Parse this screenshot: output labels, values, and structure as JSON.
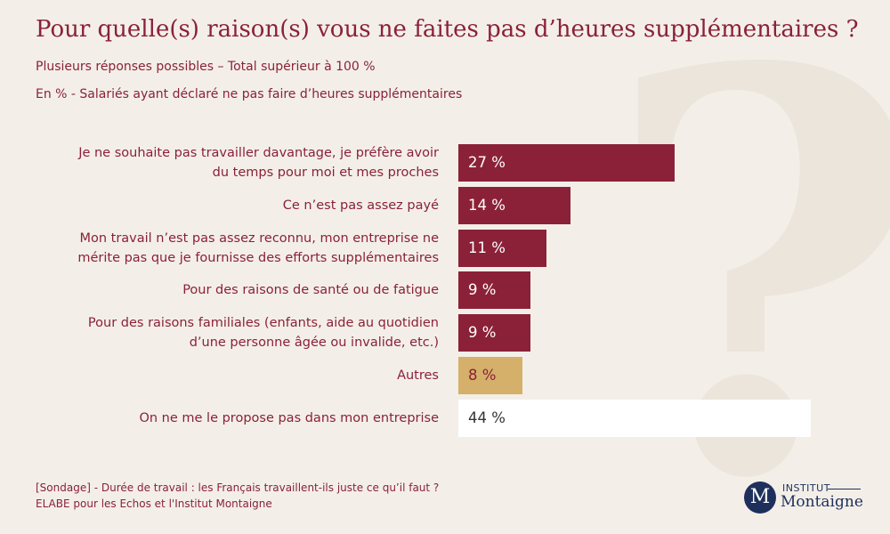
{
  "chart_data": {
    "type": "hbar",
    "title": "Pour quelle(s) raison(s) vous ne faites pas d’heures supplémentaires ?",
    "subtitle": "Plusieurs réponses possibles – Total supérieur à 100 %",
    "note": "En % - Salariés ayant déclaré ne pas faire d’heures supplémentaires",
    "categories": [
      "Je ne souhaite pas travailler davantage, je préfère avoir\ndu temps pour moi et mes proches",
      "Ce n’est pas assez payé",
      "Mon travail n’est pas assez reconnu, mon entreprise ne\nmérite pas que je fournisse des efforts supplémentaires",
      "Pour des raisons de santé ou de fatigue",
      "Pour des raisons familiales (enfants, aide au quotidien\nd’une personne âgée ou invalide, etc.)",
      "Autres",
      "On ne me le propose pas dans mon entreprise"
    ],
    "values": [
      27,
      14,
      11,
      9,
      9,
      8,
      44
    ],
    "value_labels": [
      "27 %",
      "14 %",
      "11 %",
      "9 %",
      "9 %",
      "8 %",
      "44 %"
    ],
    "colors": [
      "#8b2138",
      "#8b2138",
      "#8b2138",
      "#8b2138",
      "#8b2138",
      "#d4b06a",
      "#ffffff"
    ],
    "label_colors": [
      "#ffffff",
      "#ffffff",
      "#ffffff",
      "#ffffff",
      "#ffffff",
      "#8b2138",
      "#333333"
    ],
    "source": [
      "[Sondage] - Durée de travail : les Français travaillent-ils juste ce qu’il faut ?",
      "ELABE pour les Echos et l'Institut Montaigne"
    ]
  },
  "logo": {
    "mark": "M",
    "line1": "INSTITUT",
    "line2": "Montaigne"
  }
}
